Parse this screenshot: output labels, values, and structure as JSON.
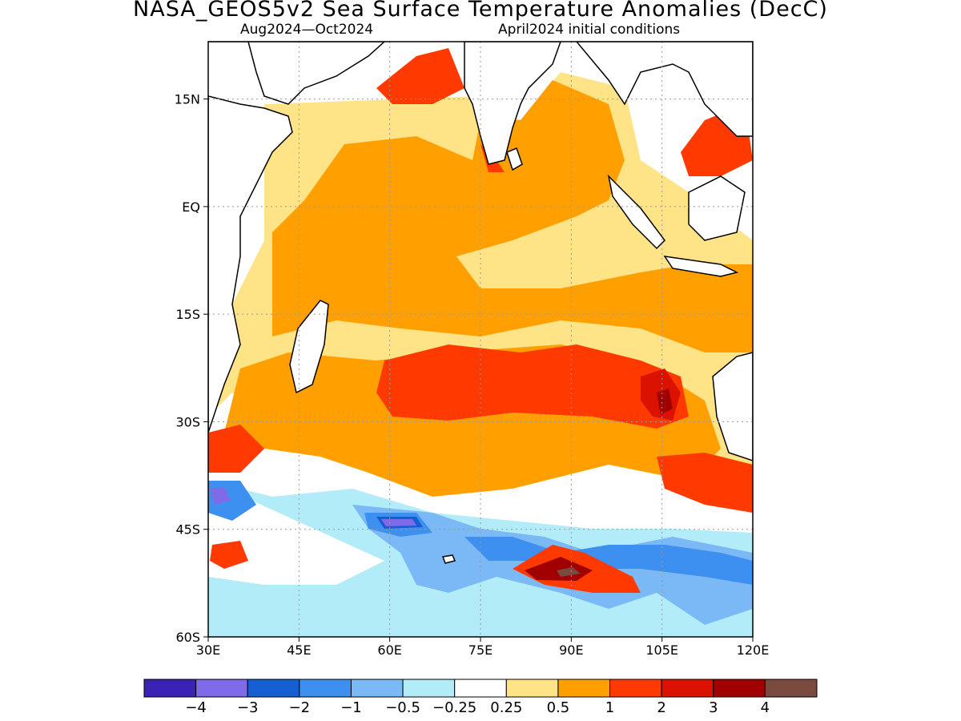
{
  "title": "NASA_GEOS5v2 Sea Surface Temperature Anomalies (DecC)",
  "subtitle_left": "Aug2024—Oct2024",
  "subtitle_right": "April2024 initial conditions",
  "map": {
    "lon_range": [
      30,
      120
    ],
    "lat_range": [
      -60,
      23
    ],
    "lat_ticks": [
      {
        "value": 15,
        "label": "15N"
      },
      {
        "value": 0,
        "label": "EQ"
      },
      {
        "value": -15,
        "label": "15S"
      },
      {
        "value": -30,
        "label": "30S"
      },
      {
        "value": -45,
        "label": "45S"
      },
      {
        "value": -60,
        "label": "60S"
      }
    ],
    "lon_ticks": [
      {
        "value": 30,
        "label": "30E"
      },
      {
        "value": 45,
        "label": "45E"
      },
      {
        "value": 60,
        "label": "60E"
      },
      {
        "value": 75,
        "label": "75E"
      },
      {
        "value": 90,
        "label": "90E"
      },
      {
        "value": 105,
        "label": "105E"
      },
      {
        "value": 120,
        "label": "120E"
      }
    ],
    "grid": true
  },
  "colorbar": {
    "colors": [
      "#3a22b5",
      "#7f6ae8",
      "#155fd0",
      "#3d8ff0",
      "#7ab8f6",
      "#b2ecf8",
      "#ffffff",
      "#ffe387",
      "#ff9f00",
      "#ff3a00",
      "#dc1200",
      "#a00000",
      "#7a4a3e"
    ],
    "labels": [
      "−4",
      "−3",
      "−2",
      "−1",
      "−0.5",
      "−0.25",
      "0.25",
      "0.5",
      "1",
      "2",
      "3",
      "4"
    ]
  }
}
